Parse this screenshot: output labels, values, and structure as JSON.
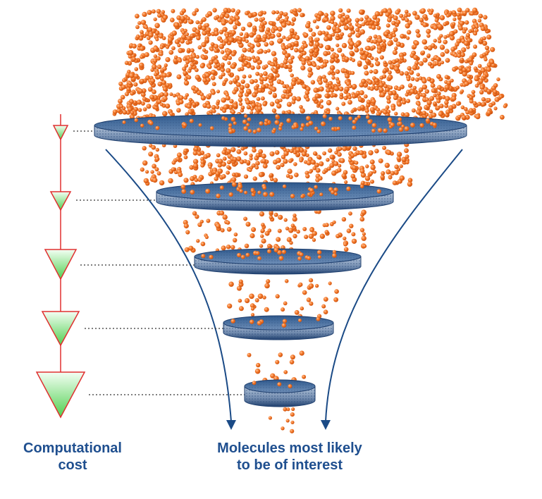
{
  "captions": {
    "computational_cost": [
      "Computational",
      "cost"
    ],
    "molecules_of_interest": [
      "Molecules most likely",
      "to be of interest"
    ]
  },
  "colors": {
    "molecule": "#f26a1c",
    "molecule_highlight": "#ffb07a",
    "disk_fill": "#4d6f9c",
    "disk_dark": "#1f3f6e",
    "funnel_arrow": "#1a4a86",
    "cost_line": "#e03030",
    "cost_triangle_light": "#f2fff2",
    "cost_triangle_dark": "#55d455",
    "caption_text": "#1f4f8f"
  },
  "icons": {
    "cost_steps": "triangle-down-gradient",
    "filter_stages": "disk-filter",
    "molecules": "orange-sphere-dots"
  },
  "filter_stages": [
    {
      "stage": 1,
      "survivor_density": "very high"
    },
    {
      "stage": 2,
      "survivor_density": "high"
    },
    {
      "stage": 3,
      "survivor_density": "medium"
    },
    {
      "stage": 4,
      "survivor_density": "low"
    },
    {
      "stage": 5,
      "survivor_density": "very low"
    }
  ]
}
